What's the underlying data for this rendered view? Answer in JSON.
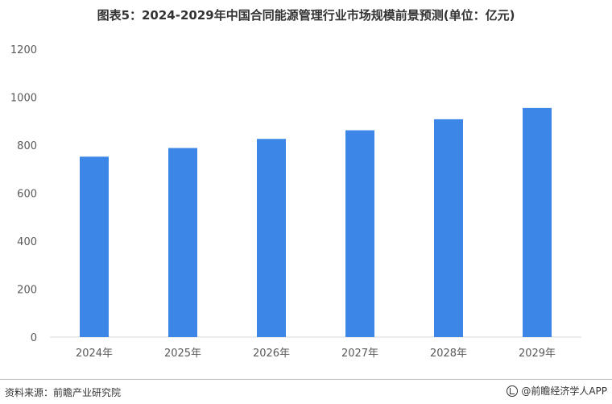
{
  "title": "图表5：2024-2029年中国合同能源管理行业市场规模前景预测(单位：亿元)",
  "footer": {
    "source": "资料来源：前瞻产业研究院",
    "brand": "@前瞻经济学人APP"
  },
  "colors": {
    "bar": "#3b86e6",
    "axis": "#d9d9d9",
    "tick_text": "#595959"
  },
  "chart_data": {
    "type": "bar",
    "title": "图表5：2024-2029年中国合同能源管理行业市场规模前景预测(单位：亿元)",
    "xlabel": "",
    "ylabel": "",
    "categories": [
      "2024年",
      "2025年",
      "2026年",
      "2027年",
      "2028年",
      "2029年"
    ],
    "series": [
      {
        "values": [
          752,
          788,
          826,
          862,
          908,
          955
        ]
      }
    ],
    "ylim": [
      0,
      1200
    ],
    "yticks": [
      0,
      200,
      400,
      600,
      800,
      1000,
      1200
    ],
    "grid": false,
    "legend": "none"
  }
}
